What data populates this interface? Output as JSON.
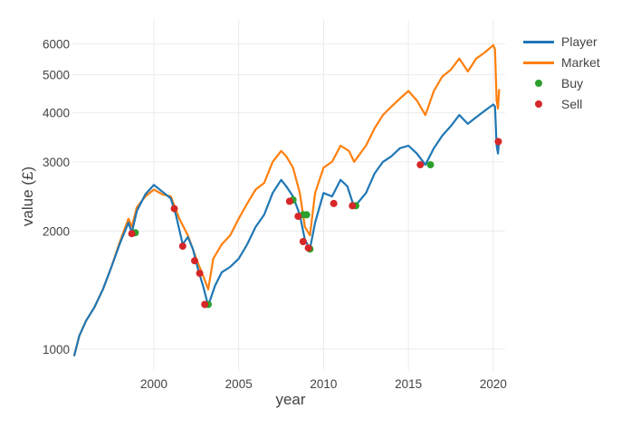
{
  "chart_data": {
    "type": "line",
    "xlabel": "year",
    "ylabel": "value (£)",
    "x_scale": "linear",
    "y_scale": "log",
    "xlim": [
      1995.2,
      2020.7
    ],
    "ylim": [
      880,
      6900
    ],
    "x_ticks": [
      2000,
      2005,
      2010,
      2015,
      2020
    ],
    "x_tick_labels": [
      "2000",
      "2005",
      "2010",
      "2015",
      "2020"
    ],
    "y_ticks": [
      1000,
      2000,
      3000,
      4000,
      5000,
      6000
    ],
    "y_tick_labels": [
      "1000",
      "2000",
      "3000",
      "4000",
      "5000",
      "6000"
    ],
    "grid": true,
    "legend": "right",
    "series": [
      {
        "name": "Player",
        "kind": "line",
        "color": "#1f77b4",
        "points": [
          [
            1995.3,
            960
          ],
          [
            1995.6,
            1080
          ],
          [
            1996.0,
            1180
          ],
          [
            1996.5,
            1280
          ],
          [
            1997.0,
            1420
          ],
          [
            1997.5,
            1620
          ],
          [
            1998.0,
            1860
          ],
          [
            1998.5,
            2100
          ],
          [
            1998.7,
            1980
          ],
          [
            1999.0,
            2250
          ],
          [
            1999.5,
            2480
          ],
          [
            2000.0,
            2620
          ],
          [
            2000.5,
            2520
          ],
          [
            2001.0,
            2420
          ],
          [
            2001.3,
            2200
          ],
          [
            2001.7,
            1850
          ],
          [
            2002.0,
            1930
          ],
          [
            2002.3,
            1800
          ],
          [
            2002.6,
            1600
          ],
          [
            2002.9,
            1450
          ],
          [
            2003.2,
            1290
          ],
          [
            2003.6,
            1450
          ],
          [
            2004.0,
            1570
          ],
          [
            2004.5,
            1620
          ],
          [
            2005.0,
            1700
          ],
          [
            2005.5,
            1850
          ],
          [
            2006.0,
            2050
          ],
          [
            2006.5,
            2200
          ],
          [
            2007.0,
            2500
          ],
          [
            2007.5,
            2700
          ],
          [
            2007.8,
            2600
          ],
          [
            2008.2,
            2450
          ],
          [
            2008.6,
            2200
          ],
          [
            2008.9,
            1900
          ],
          [
            2009.2,
            1800
          ],
          [
            2009.5,
            2100
          ],
          [
            2010.0,
            2500
          ],
          [
            2010.5,
            2450
          ],
          [
            2011.0,
            2700
          ],
          [
            2011.4,
            2600
          ],
          [
            2011.8,
            2300
          ],
          [
            2012.5,
            2500
          ],
          [
            2013.0,
            2800
          ],
          [
            2013.5,
            3000
          ],
          [
            2014.0,
            3100
          ],
          [
            2014.5,
            3250
          ],
          [
            2015.0,
            3300
          ],
          [
            2015.5,
            3150
          ],
          [
            2016.0,
            2950
          ],
          [
            2016.5,
            3250
          ],
          [
            2017.0,
            3500
          ],
          [
            2017.5,
            3700
          ],
          [
            2018.0,
            3950
          ],
          [
            2018.5,
            3750
          ],
          [
            2019.0,
            3900
          ],
          [
            2019.5,
            4050
          ],
          [
            2020.0,
            4200
          ],
          [
            2020.1,
            4150
          ],
          [
            2020.2,
            3300
          ],
          [
            2020.28,
            3150
          ],
          [
            2020.35,
            3400
          ]
        ]
      },
      {
        "name": "Market",
        "kind": "line",
        "color": "#ff7f0e",
        "points": [
          [
            1995.3,
            960
          ],
          [
            1995.6,
            1080
          ],
          [
            1996.0,
            1180
          ],
          [
            1996.5,
            1280
          ],
          [
            1997.0,
            1420
          ],
          [
            1997.5,
            1620
          ],
          [
            1998.0,
            1880
          ],
          [
            1998.5,
            2150
          ],
          [
            1998.7,
            2050
          ],
          [
            1999.0,
            2300
          ],
          [
            1999.5,
            2450
          ],
          [
            2000.0,
            2550
          ],
          [
            2000.5,
            2480
          ],
          [
            2001.0,
            2450
          ],
          [
            2001.5,
            2150
          ],
          [
            2002.0,
            1950
          ],
          [
            2002.5,
            1700
          ],
          [
            2003.0,
            1500
          ],
          [
            2003.2,
            1420
          ],
          [
            2003.5,
            1700
          ],
          [
            2004.0,
            1850
          ],
          [
            2004.5,
            1950
          ],
          [
            2005.0,
            2150
          ],
          [
            2005.5,
            2350
          ],
          [
            2006.0,
            2550
          ],
          [
            2006.5,
            2650
          ],
          [
            2007.0,
            3000
          ],
          [
            2007.5,
            3200
          ],
          [
            2007.8,
            3100
          ],
          [
            2008.2,
            2900
          ],
          [
            2008.6,
            2500
          ],
          [
            2008.9,
            2050
          ],
          [
            2009.2,
            1950
          ],
          [
            2009.5,
            2500
          ],
          [
            2010.0,
            2900
          ],
          [
            2010.5,
            3000
          ],
          [
            2011.0,
            3300
          ],
          [
            2011.5,
            3200
          ],
          [
            2011.8,
            3000
          ],
          [
            2012.5,
            3300
          ],
          [
            2013.0,
            3650
          ],
          [
            2013.5,
            3950
          ],
          [
            2014.0,
            4150
          ],
          [
            2014.5,
            4350
          ],
          [
            2015.0,
            4550
          ],
          [
            2015.5,
            4300
          ],
          [
            2016.0,
            3950
          ],
          [
            2016.5,
            4550
          ],
          [
            2017.0,
            4950
          ],
          [
            2017.5,
            5150
          ],
          [
            2018.0,
            5500
          ],
          [
            2018.5,
            5100
          ],
          [
            2019.0,
            5500
          ],
          [
            2019.5,
            5700
          ],
          [
            2020.0,
            5950
          ],
          [
            2020.1,
            5800
          ],
          [
            2020.2,
            4300
          ],
          [
            2020.28,
            4100
          ],
          [
            2020.35,
            4600
          ]
        ]
      },
      {
        "name": "Buy",
        "kind": "markers",
        "color": "#2ca02c",
        "points": [
          [
            1998.9,
            1980
          ],
          [
            2003.2,
            1300
          ],
          [
            2008.2,
            2400
          ],
          [
            2008.8,
            2200
          ],
          [
            2009.0,
            2200
          ],
          [
            2009.2,
            1800
          ],
          [
            2011.9,
            2320
          ],
          [
            2016.3,
            2950
          ]
        ]
      },
      {
        "name": "Sell",
        "kind": "markers",
        "color": "#d62728",
        "points": [
          [
            1998.7,
            1970
          ],
          [
            2001.2,
            2280
          ],
          [
            2001.7,
            1830
          ],
          [
            2002.4,
            1680
          ],
          [
            2002.7,
            1560
          ],
          [
            2003.0,
            1300
          ],
          [
            2008.0,
            2380
          ],
          [
            2008.5,
            2180
          ],
          [
            2008.8,
            1880
          ],
          [
            2009.1,
            1810
          ],
          [
            2010.6,
            2350
          ],
          [
            2011.7,
            2320
          ],
          [
            2015.7,
            2950
          ],
          [
            2020.3,
            3380
          ]
        ]
      }
    ]
  }
}
